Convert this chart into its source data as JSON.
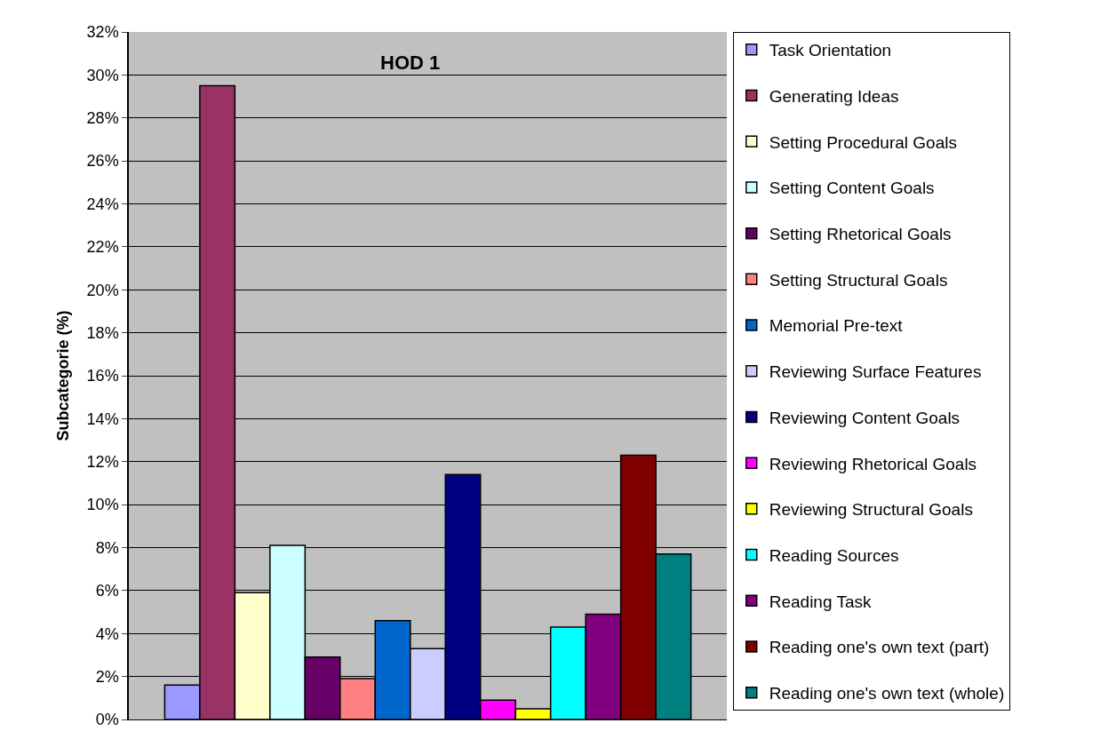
{
  "chart_data": {
    "type": "bar",
    "title": "HOD 1",
    "ylabel": "Subcategorie (%)",
    "categories": [
      null
    ],
    "series": [
      {
        "name": "Task Orientation",
        "color": "#9999ff",
        "values": [
          1.6
        ]
      },
      {
        "name": "Generating Ideas",
        "color": "#993366",
        "values": [
          29.5
        ]
      },
      {
        "name": "Setting Procedural Goals",
        "color": "#ffffcc",
        "values": [
          5.9
        ]
      },
      {
        "name": "Setting Content Goals",
        "color": "#ccffff",
        "values": [
          8.1
        ]
      },
      {
        "name": "Setting Rhetorical Goals",
        "color": "#660066",
        "values": [
          2.9
        ]
      },
      {
        "name": "Setting Structural Goals",
        "color": "#ff8080",
        "values": [
          1.9
        ]
      },
      {
        "name": "Memorial Pre-text",
        "color": "#0066cc",
        "values": [
          4.6
        ]
      },
      {
        "name": "Reviewing Surface Features",
        "color": "#ccccff",
        "values": [
          3.3
        ]
      },
      {
        "name": "Reviewing Content Goals",
        "color": "#000080",
        "values": [
          11.4
        ]
      },
      {
        "name": "Reviewing Rhetorical Goals",
        "color": "#ff00ff",
        "values": [
          0.9
        ]
      },
      {
        "name": "Reviewing Structural Goals",
        "color": "#ffff00",
        "values": [
          0.5
        ]
      },
      {
        "name": "Reading Sources",
        "color": "#00ffff",
        "values": [
          4.3
        ]
      },
      {
        "name": "Reading Task",
        "color": "#800080",
        "values": [
          4.9
        ]
      },
      {
        "name": "Reading one's own text (part)",
        "color": "#800000",
        "values": [
          12.3
        ]
      },
      {
        "name": "Reading one's own text (whole)",
        "color": "#008080",
        "values": [
          7.7
        ]
      }
    ],
    "ylim": [
      0,
      32
    ],
    "yticks": [
      {
        "value": 0,
        "label": "0%"
      },
      {
        "value": 2,
        "label": "2%"
      },
      {
        "value": 4,
        "label": "4%"
      },
      {
        "value": 6,
        "label": "6%"
      },
      {
        "value": 8,
        "label": "8%"
      },
      {
        "value": 10,
        "label": "10%"
      },
      {
        "value": 12,
        "label": "12%"
      },
      {
        "value": 14,
        "label": "14%"
      },
      {
        "value": 16,
        "label": "16%"
      },
      {
        "value": 18,
        "label": "18%"
      },
      {
        "value": 20,
        "label": "20%"
      },
      {
        "value": 22,
        "label": "22%"
      },
      {
        "value": 24,
        "label": "24%"
      },
      {
        "value": 26,
        "label": "26%"
      },
      {
        "value": 28,
        "label": "28%"
      },
      {
        "value": 30,
        "label": "30%"
      },
      {
        "value": 32,
        "label": "32%"
      }
    ],
    "grid": "y",
    "legend": "right"
  }
}
